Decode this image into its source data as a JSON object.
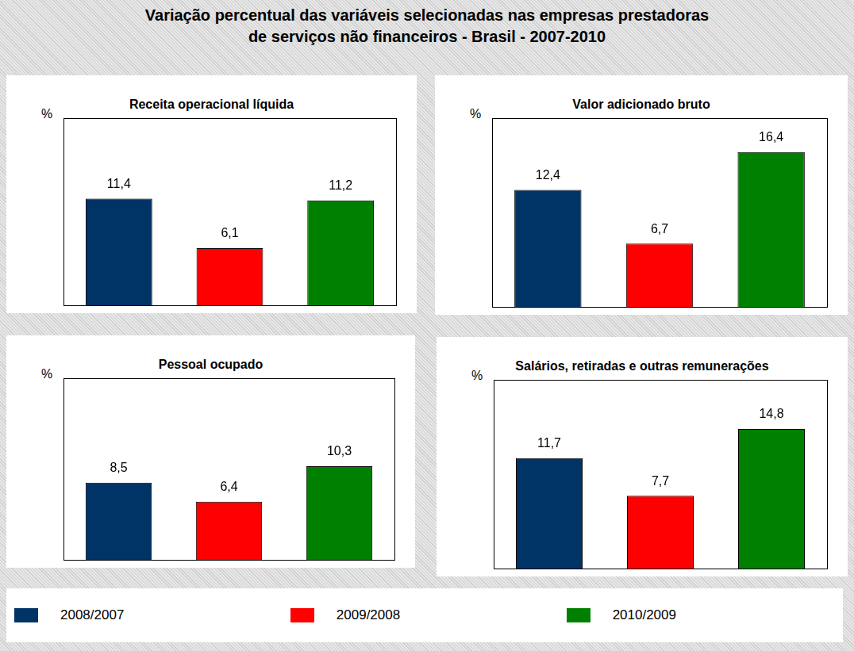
{
  "title": [
    "Variação percentual das variáveis selecionadas nas empresas prestadoras",
    "de serviços não financeiros  - Brasil - 2007-2010"
  ],
  "chart_data": [
    {
      "type": "bar",
      "title": "Receita operacional líquida",
      "y_label": "%",
      "categories": [
        "2008/2007",
        "2009/2008",
        "2010/2009"
      ],
      "values": [
        11.4,
        6.1,
        11.2
      ],
      "value_labels": [
        "11,4",
        "6,1",
        "11,2"
      ],
      "colors": [
        "#003366",
        "#ff0000",
        "#008000"
      ],
      "ylim": [
        0,
        20
      ],
      "grid": false,
      "data_labels": true,
      "tick_labels": false,
      "legend": "bottom"
    },
    {
      "type": "bar",
      "title": "Valor adicionado bruto",
      "y_label": "%",
      "categories": [
        "2008/2007",
        "2009/2008",
        "2010/2009"
      ],
      "values": [
        12.4,
        6.7,
        16.4
      ],
      "value_labels": [
        "12,4",
        "6,7",
        "16,4"
      ],
      "colors": [
        "#003366",
        "#ff0000",
        "#008000"
      ],
      "ylim": [
        0,
        20
      ],
      "grid": false,
      "data_labels": true,
      "tick_labels": false,
      "legend": "bottom"
    },
    {
      "type": "bar",
      "title": "Pessoal ocupado",
      "y_label": "%",
      "categories": [
        "2008/2007",
        "2009/2008",
        "2010/2009"
      ],
      "values": [
        8.5,
        6.4,
        10.3
      ],
      "value_labels": [
        "8,5",
        "6,4",
        "10,3"
      ],
      "colors": [
        "#003366",
        "#ff0000",
        "#008000"
      ],
      "ylim": [
        0,
        20
      ],
      "grid": false,
      "data_labels": true,
      "tick_labels": false,
      "legend": "bottom"
    },
    {
      "type": "bar",
      "title": "Salários, retiradas e outras remunerações",
      "y_label": "%",
      "categories": [
        "2008/2007",
        "2009/2008",
        "2010/2009"
      ],
      "values": [
        11.7,
        7.7,
        14.8
      ],
      "value_labels": [
        "11,7",
        "7,7",
        "14,8"
      ],
      "colors": [
        "#003366",
        "#ff0000",
        "#008000"
      ],
      "ylim": [
        0,
        20
      ],
      "grid": false,
      "data_labels": true,
      "tick_labels": false,
      "legend": "bottom"
    }
  ]
}
